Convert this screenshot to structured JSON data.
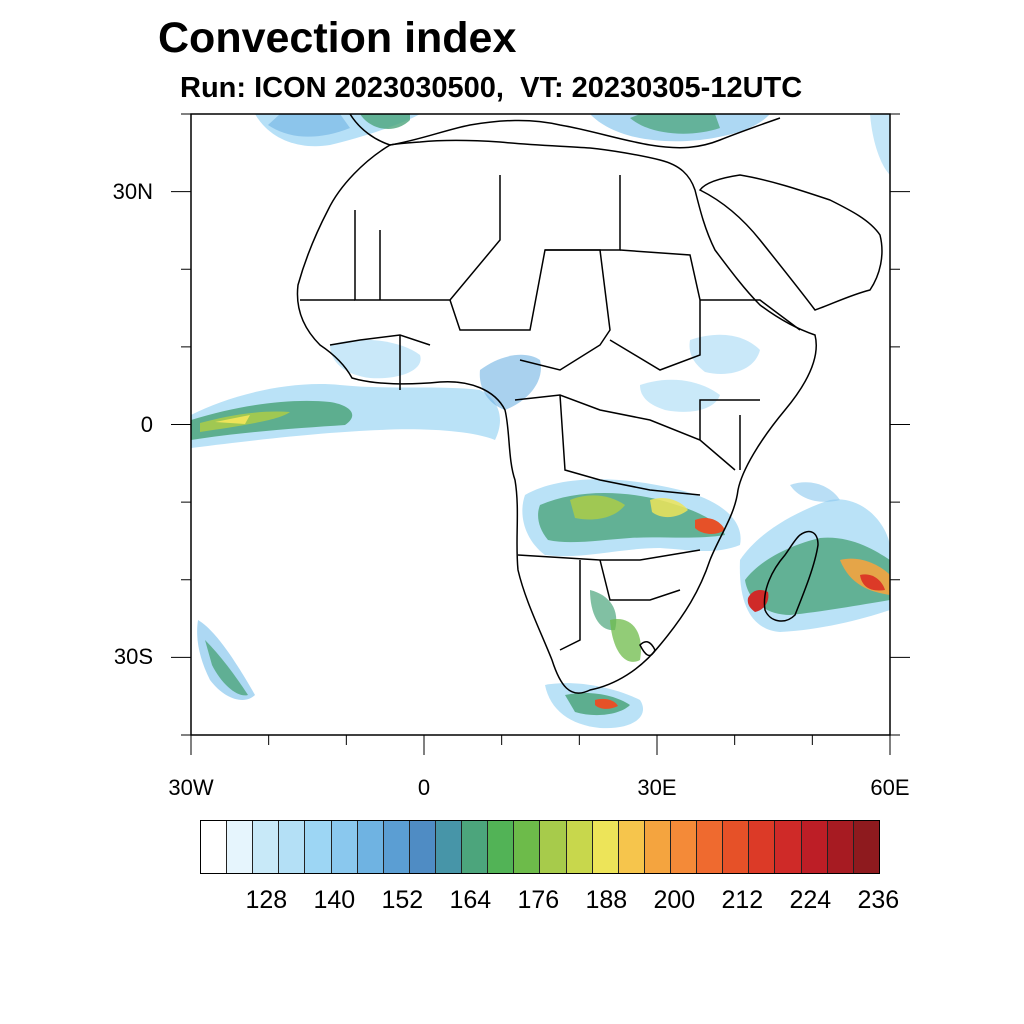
{
  "title": "Convection index",
  "subtitle": "Run: ICON 2023030500,  VT: 20230305-12UTC",
  "map": {
    "lon_range": [
      -30,
      60
    ],
    "lat_range": [
      -40,
      40
    ],
    "lat_ticks": [
      {
        "value": 30,
        "label": "30N"
      },
      {
        "value": 0,
        "label": "0"
      },
      {
        "value": -30,
        "label": "30S"
      }
    ],
    "lon_ticks": [
      {
        "value": -30,
        "label": "30W"
      },
      {
        "value": 0,
        "label": "0"
      },
      {
        "value": 30,
        "label": "30E"
      },
      {
        "value": 60,
        "label": "60E"
      }
    ]
  },
  "colorbar": {
    "labels": [
      "128",
      "140",
      "152",
      "164",
      "176",
      "188",
      "200",
      "212",
      "224",
      "236"
    ],
    "colors": [
      "#ffffff",
      "#e6f5fd",
      "#c8e9f8",
      "#b4e0f6",
      "#9dd6f4",
      "#8ac8ee",
      "#6fb3e2",
      "#5b9ed3",
      "#4f8cc4",
      "#4795a8",
      "#4ca57c",
      "#52b356",
      "#6dbb4a",
      "#a7cb4b",
      "#c8d74c",
      "#ede459",
      "#f6c54c",
      "#f4a43f",
      "#f48a38",
      "#ef6a2f",
      "#e65128",
      "#dc3a27",
      "#cf2a28",
      "#bd1e26",
      "#a71b22",
      "#8e1a1e"
    ]
  }
}
